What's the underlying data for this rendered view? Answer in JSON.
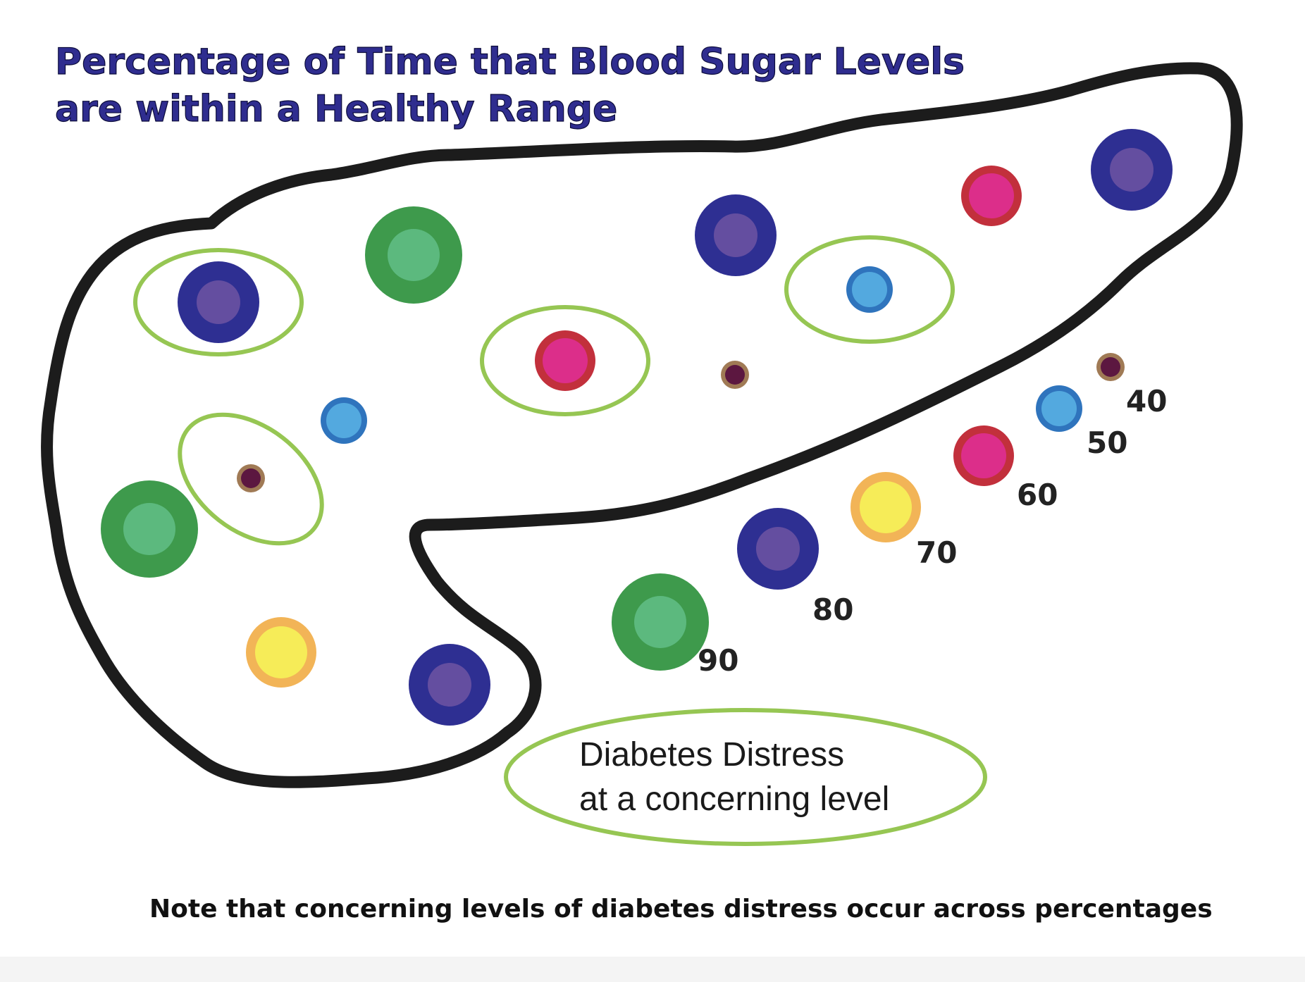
{
  "title": {
    "line1": "Percentage of Time that Blood Sugar Levels",
    "line2": "are within a Healthy Range"
  },
  "legend": {
    "line1": "Diabetes Distress",
    "line2": "at a concerning level"
  },
  "note": "Note that concerning levels of diabetes distress occur across percentages",
  "scale": [
    {
      "label": "90",
      "percent": 90,
      "color": "green"
    },
    {
      "label": "80",
      "percent": 80,
      "color": "navy"
    },
    {
      "label": "70",
      "percent": 70,
      "color": "yellow"
    },
    {
      "label": "60",
      "percent": 60,
      "color": "magenta"
    },
    {
      "label": "50",
      "percent": 50,
      "color": "blue"
    },
    {
      "label": "40",
      "percent": 40,
      "color": "maroon"
    }
  ],
  "participants": [
    {
      "percent": 80,
      "distress": true
    },
    {
      "percent": 90,
      "distress": false
    },
    {
      "percent": 80,
      "distress": false
    },
    {
      "percent": 60,
      "distress": false
    },
    {
      "percent": 80,
      "distress": false
    },
    {
      "percent": 60,
      "distress": true
    },
    {
      "percent": 50,
      "distress": true
    },
    {
      "percent": 40,
      "distress": false
    },
    {
      "percent": 50,
      "distress": false
    },
    {
      "percent": 40,
      "distress": true
    },
    {
      "percent": 90,
      "distress": false
    },
    {
      "percent": 70,
      "distress": false
    },
    {
      "percent": 80,
      "distress": false
    }
  ],
  "colors": {
    "green": {
      "outer": "#3e9a4c",
      "inner": "#5cb97e"
    },
    "navy": {
      "outer": "#2e2f92",
      "inner": "#644ea0"
    },
    "yellow": {
      "outer": "#f2b457",
      "inner": "#f6ec58"
    },
    "magenta": {
      "outer": "#c2303c",
      "inner": "#dc2e8a"
    },
    "blue": {
      "outer": "#2f74bd",
      "inner": "#53a9df"
    },
    "maroon": {
      "outer": "#a07a55",
      "inner": "#5c1740"
    },
    "outline": "#1c1c1c",
    "distress_ring": "#96c653",
    "title": "#2f2d8f"
  }
}
